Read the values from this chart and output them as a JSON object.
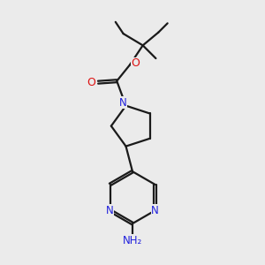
{
  "bg_color": "#ebebeb",
  "bond_color": "#1a1a1a",
  "N_color": "#2020dd",
  "O_color": "#dd1010",
  "line_width": 1.6,
  "font_size": 8.5,
  "fig_size": [
    3.0,
    3.0
  ],
  "dpi": 100,
  "xlim": [
    0,
    10
  ],
  "ylim": [
    0,
    10
  ]
}
